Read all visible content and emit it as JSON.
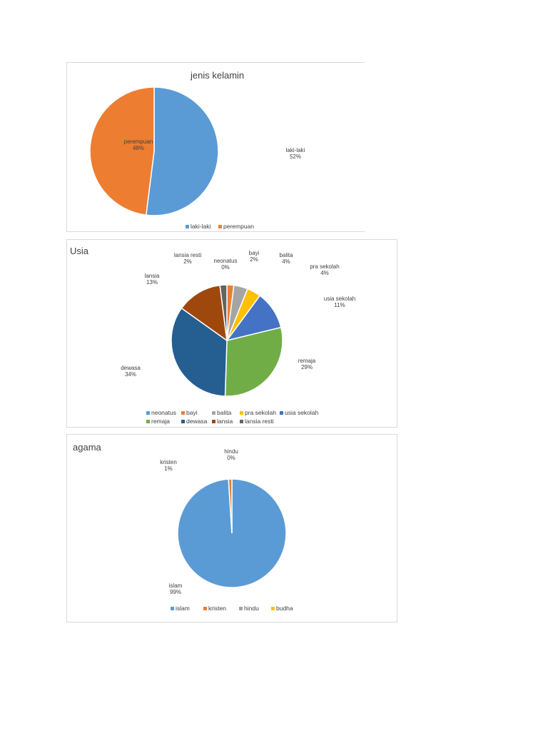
{
  "chart_data": [
    {
      "type": "pie",
      "title": "jenis kelamin",
      "slices": [
        {
          "label": "laki-laki",
          "value": 52,
          "display": "52%",
          "color": "#5b9bd5"
        },
        {
          "label": "perempuan",
          "value": 48,
          "display": "48%",
          "color": "#ed7d31"
        }
      ],
      "legend_position": "bottom"
    },
    {
      "type": "pie",
      "title": "Usia",
      "slices": [
        {
          "label": "neonatus",
          "value": 0,
          "display": "0%",
          "color": "#5b9bd5"
        },
        {
          "label": "bayi",
          "value": 2,
          "display": "2%",
          "color": "#ed7d31"
        },
        {
          "label": "balita",
          "value": 4,
          "display": "4%",
          "color": "#a5a5a5"
        },
        {
          "label": "pra sekolah",
          "value": 4,
          "display": "4%",
          "color": "#ffc000"
        },
        {
          "label": "usia sekolah",
          "value": 11,
          "display": "11%",
          "color": "#4472c4"
        },
        {
          "label": "remaja",
          "value": 29,
          "display": "29%",
          "color": "#70ad47"
        },
        {
          "label": "dewasa",
          "value": 34,
          "display": "34%",
          "color": "#255e91"
        },
        {
          "label": "lansia",
          "value": 13,
          "display": "13%",
          "color": "#9e480e"
        },
        {
          "label": "lansia resti",
          "value": 2,
          "display": "2%",
          "color": "#636363"
        }
      ],
      "legend_position": "bottom"
    },
    {
      "type": "pie",
      "title": "agama",
      "slices": [
        {
          "label": "islam",
          "value": 99,
          "display": "99%",
          "color": "#5b9bd5"
        },
        {
          "label": "kristen",
          "value": 1,
          "display": "1%",
          "color": "#ed7d31"
        },
        {
          "label": "hindu",
          "value": 0,
          "display": "0%",
          "color": "#a5a5a5"
        },
        {
          "label": "budha",
          "value": null,
          "display": null,
          "color": "#ffc000"
        }
      ],
      "legend_position": "bottom"
    }
  ]
}
